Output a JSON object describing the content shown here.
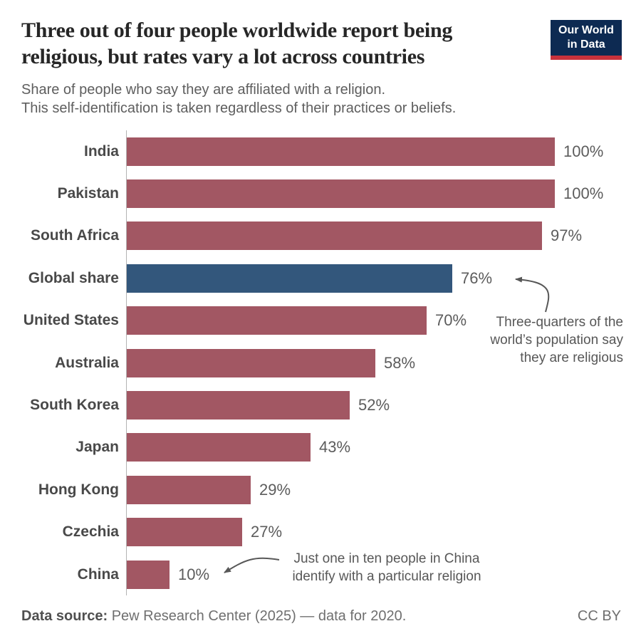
{
  "header": {
    "title_lines": [
      "Three out of four people worldwide report being",
      "religious, but rates vary a lot across countries"
    ],
    "subtitle_lines": [
      "Share of people who say they are affiliated with a religion.",
      "This self-identification is taken regardless of their practices or beliefs."
    ]
  },
  "logo": {
    "line1": "Our World",
    "line2": "in Data",
    "bg_color": "#0d2a52",
    "accent_color": "#c8323c"
  },
  "chart_data": {
    "type": "bar",
    "orientation": "horizontal",
    "title": "Three out of four people worldwide report being religious, but rates vary a lot across countries",
    "subtitle": "Share of people who say they are affiliated with a religion. This self-identification is taken regardless of their practices or beliefs.",
    "categories": [
      "India",
      "Pakistan",
      "South Africa",
      "Global share",
      "United States",
      "Australia",
      "South Korea",
      "Japan",
      "Hong Kong",
      "Czechia",
      "China"
    ],
    "values": [
      100,
      100,
      97,
      76,
      70,
      58,
      52,
      43,
      29,
      27,
      10
    ],
    "value_suffix": "%",
    "xlim": [
      0,
      100
    ],
    "grid": false,
    "bar_color": "#a25763",
    "highlight_index": 3,
    "highlight_color": "#33577c",
    "annotations": [
      {
        "id": "global",
        "target": "Global share",
        "lines": [
          "Three-quarters of the",
          "world’s population say",
          "they are religious"
        ]
      },
      {
        "id": "china",
        "target": "China",
        "lines": [
          "Just one in ten people in China",
          "identify with a particular religion"
        ]
      }
    ]
  },
  "footer": {
    "source_label": "Data source:",
    "source_text": "Pew Research Center (2025) — data for 2020.",
    "license": "CC BY"
  }
}
